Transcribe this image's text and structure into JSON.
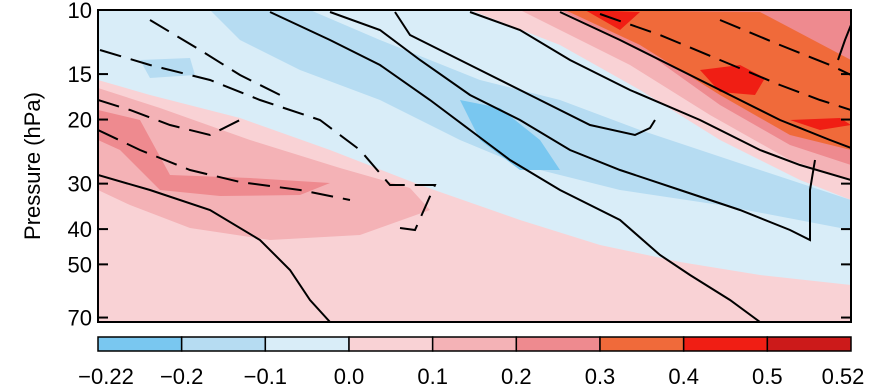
{
  "chart_data": {
    "type": "heatmap",
    "ylabel": "Pressure (hPa)",
    "y_scale": "log",
    "y_inverted": true,
    "y_ticks": [
      10,
      15,
      20,
      30,
      40,
      50,
      70
    ],
    "ylim": [
      72,
      10
    ],
    "colorbar": {
      "boundaries": [
        "−0.22",
        "−0.2",
        "−0.1",
        "0.0",
        "0.1",
        "0.2",
        "0.3",
        "0.4",
        "0.5",
        "0.52"
      ],
      "colors": [
        "#79c7f0",
        "#b6dcf2",
        "#d9edf8",
        "#f9d2d5",
        "#f4b2b6",
        "#ee8a8f",
        "#f06a3a",
        "#f01e14",
        "#cc1a1a"
      ]
    },
    "regions_description": [
      {
        "level": "0.4 to 0.5",
        "where": "upper right, 10–20 hPa"
      },
      {
        "level": "0.3 to 0.4",
        "where": "upper right band, 10–25 hPa"
      },
      {
        "level": "0.2 to 0.3",
        "where": "left side, 20–30 hPa"
      },
      {
        "level": "-0.22 to -0.2",
        "where": "center, 18–28 hPa"
      }
    ]
  }
}
